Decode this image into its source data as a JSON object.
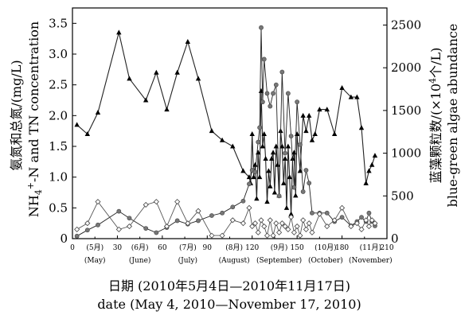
{
  "chart_data": {
    "type": "line",
    "xlabel_cn": "日期 (2010年5月4日—2010年11月17日)",
    "xlabel_en": "date (May 4, 2010—November 17, 2010)",
    "ylabel_left_cn": "氨氮和总氮/(mg/L)",
    "ylabel_left_en_prefix": "NH",
    "ylabel_left_en_sub": "4",
    "ylabel_left_en_sup": "+",
    "ylabel_left_en_suffix": "-N and TN concentration",
    "ylabel_right_cn": "蓝藻颗粒数/(×10",
    "ylabel_right_cn_sup": "4",
    "ylabel_right_cn_suffix": "个/L)",
    "ylabel_right_en": "blue-green algae abundance",
    "xlim": [
      0,
      210
    ],
    "ylim_left": [
      0,
      3.75
    ],
    "ylim_right": [
      0,
      2700
    ],
    "x_ticks": [
      0,
      30,
      60,
      90,
      120,
      150,
      180,
      210
    ],
    "x_tick_labels": [
      "0",
      "30",
      "60",
      "90",
      "120",
      "150",
      "180",
      "210"
    ],
    "month_labels": [
      {
        "x": 15,
        "top": "(5月)",
        "bottom": "(May)"
      },
      {
        "x": 45,
        "top": "(6月)",
        "bottom": "(June)"
      },
      {
        "x": 77,
        "top": "(7月)",
        "bottom": "(July)"
      },
      {
        "x": 108,
        "top": "(8月)",
        "bottom": "(August)"
      },
      {
        "x": 138,
        "top": "(9月)",
        "bottom": "(September)"
      },
      {
        "x": 169,
        "top": "(10月)",
        "bottom": "(October)"
      },
      {
        "x": 199,
        "top": "(11月)",
        "bottom": "(November)"
      }
    ],
    "y_left_ticks": [
      0,
      0.5,
      1.0,
      1.5,
      2.0,
      2.5,
      3.0,
      3.5
    ],
    "y_left_tick_labels": [
      "0",
      "0.5",
      "1.0",
      "1.5",
      "2.0",
      "2.5",
      "3.0",
      "3.5"
    ],
    "y_right_ticks": [
      0,
      500,
      1000,
      1500,
      2000,
      2500
    ],
    "y_right_tick_labels": [
      "0",
      "500",
      "1000",
      "1500",
      "2000",
      "2500"
    ],
    "series": [
      {
        "marker": "triangle",
        "axis": "left",
        "x": [
          3,
          10,
          17,
          31,
          38,
          49,
          56,
          63,
          70,
          77,
          84,
          93,
          100,
          107,
          114,
          118,
          119,
          120,
          121,
          122,
          123,
          124,
          125,
          126,
          127,
          128,
          129,
          130,
          131,
          132,
          133,
          134,
          135,
          136,
          137,
          138,
          139,
          140,
          141,
          142,
          143,
          144,
          145,
          146,
          147,
          148,
          149,
          150,
          152,
          154,
          156,
          158,
          160,
          162,
          165,
          170,
          175,
          180,
          186,
          190,
          193,
          196,
          198,
          200,
          202
        ],
        "y": [
          1.85,
          1.7,
          2.05,
          3.35,
          2.6,
          2.25,
          2.7,
          2.1,
          2.7,
          3.2,
          2.6,
          1.75,
          1.6,
          1.5,
          1.1,
          1.0,
          0.9,
          1.7,
          1.0,
          1.2,
          0.65,
          1.4,
          1.0,
          2.4,
          1.5,
          1.7,
          1.3,
          0.6,
          1.1,
          0.85,
          1.3,
          1.4,
          0.75,
          1.5,
          1.2,
          0.7,
          1.75,
          1.5,
          0.9,
          1.3,
          0.5,
          1.5,
          1.0,
          0.4,
          1.3,
          1.4,
          0.7,
          1.7,
          1.1,
          2.0,
          1.75,
          2.0,
          1.6,
          1.7,
          2.1,
          2.1,
          1.7,
          2.45,
          2.3,
          2.3,
          1.8,
          0.9,
          1.1,
          1.2,
          1.35
        ]
      },
      {
        "marker": "dot",
        "axis": "right",
        "x": [
          3,
          10,
          17,
          31,
          38,
          49,
          56,
          63,
          70,
          77,
          84,
          93,
          100,
          107,
          114,
          118,
          120,
          122,
          124,
          125,
          126,
          127,
          128,
          130,
          132,
          134,
          136,
          138,
          140,
          142,
          144,
          146,
          148,
          150,
          152,
          154,
          156,
          158,
          160,
          165,
          170,
          175,
          180,
          186,
          190,
          193,
          196,
          198,
          200,
          202
        ],
        "y": [
          30,
          100,
          160,
          320,
          240,
          120,
          70,
          130,
          210,
          170,
          210,
          270,
          300,
          370,
          440,
          640,
          800,
          780,
          1130,
          1300,
          2470,
          1600,
          2100,
          1700,
          1550,
          1700,
          1800,
          500,
          1950,
          1000,
          1700,
          1200,
          600,
          1600,
          1100,
          550,
          800,
          650,
          300,
          300,
          300,
          200,
          250,
          150,
          200,
          250,
          200,
          300,
          200,
          150
        ]
      },
      {
        "marker": "diamond",
        "axis": "left",
        "x": [
          3,
          10,
          17,
          31,
          38,
          49,
          56,
          63,
          70,
          77,
          84,
          93,
          100,
          107,
          114,
          118,
          120,
          122,
          124,
          126,
          128,
          130,
          132,
          134,
          136,
          138,
          140,
          142,
          144,
          146,
          148,
          150,
          152,
          154,
          156,
          158,
          160,
          165,
          170,
          175,
          180,
          186,
          190,
          193,
          196,
          198,
          200,
          202
        ],
        "y": [
          0.15,
          0.25,
          0.6,
          0.15,
          0.2,
          0.55,
          0.6,
          0.2,
          0.6,
          0.25,
          0.45,
          0.05,
          0.05,
          0.3,
          0.25,
          0.5,
          0.2,
          0.25,
          0.1,
          0.3,
          0.2,
          0.05,
          0.3,
          0.05,
          0.25,
          0.1,
          0.25,
          0.2,
          0.15,
          0.35,
          0.1,
          0.2,
          0.05,
          0.3,
          0.15,
          0.25,
          0.1,
          0.4,
          0.2,
          0.3,
          0.5,
          0.2,
          0.25,
          0.15,
          0.3,
          0.2,
          0.3,
          0.25
        ]
      }
    ]
  }
}
